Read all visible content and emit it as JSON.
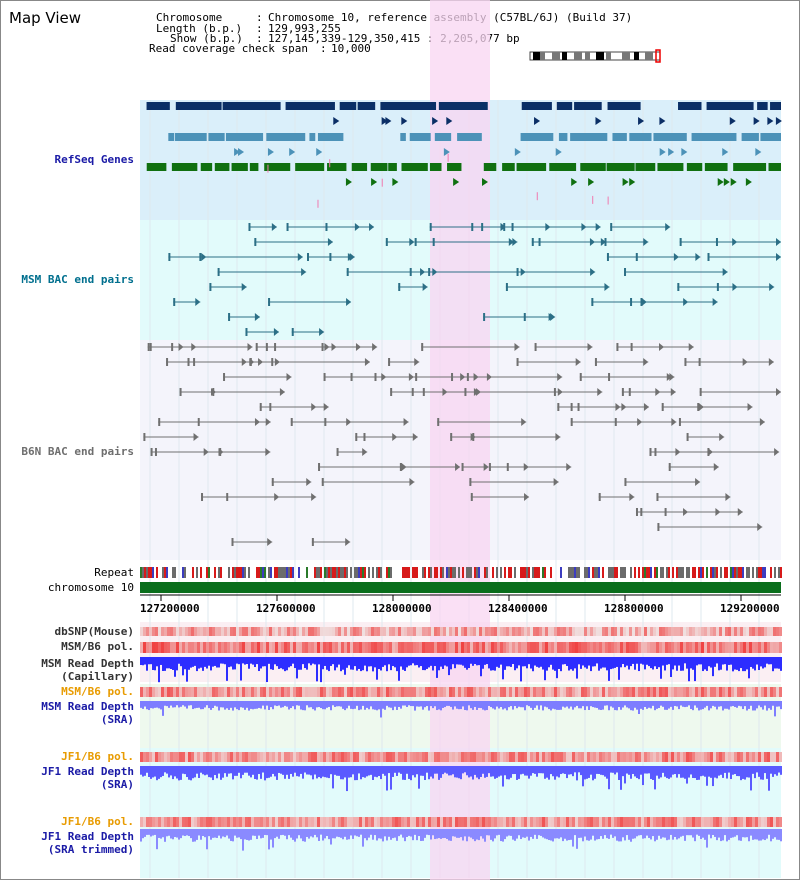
{
  "window": {
    "title": "Map View"
  },
  "info": {
    "chromosome_label": "Chromosome",
    "chromosome_value": "Chromosome 10, reference assembly (C57BL/6J) (Build 37)",
    "length_label": "Length (b.p.)",
    "length_value": "129,993,255",
    "show_label": "Show (b.p.)",
    "show_value": "127,145,339-129,350,415 : 2,205,077 bp",
    "span_label": "Read coverage check span",
    "span_value": "10,000"
  },
  "tracks": {
    "refseq": "RefSeq Genes",
    "msm_bac": "MSM BAC end pairs",
    "b6n_bac": "B6N BAC end pairs",
    "repeat": "Repeat",
    "chromosome": "chromosome 10",
    "dbsnp": "dbSNP(Mouse)",
    "msm_b6_pol_1": "MSM/B6 pol.",
    "msm_read_depth_cap_1": "MSM Read Depth",
    "msm_read_depth_cap_2": "(Capillary)",
    "msm_b6_pol_2": "MSM/B6 pol.",
    "msm_read_depth_sra_1": "MSM Read Depth",
    "msm_read_depth_sra_2": "(SRA)",
    "jf1_b6_pol_1": "JF1/B6 pol.",
    "jf1_read_depth_sra_1": "JF1 Read Depth",
    "jf1_read_depth_sra_2": "(SRA)",
    "jf1_b6_pol_2": "JF1/B6 pol.",
    "jf1_read_depth_trim_1": "JF1 Read Depth",
    "jf1_read_depth_trim_2": "(SRA trimmed)"
  },
  "axis": {
    "ticks": [
      "127200000",
      "127600000",
      "128000000",
      "128400000",
      "128800000",
      "129200000"
    ]
  },
  "colors": {
    "refseq_bg": "#daeffa",
    "bac_bg": "#e2fbfb",
    "highlight": "#f8d6f2",
    "gene_dark": "#0b2f66",
    "gene_mid": "#4c92b8",
    "gene_green": "#107010",
    "bac_teal": "#2c6f86",
    "bac_gray": "#707070",
    "chromosome": "#0a6e1c",
    "depth_blue": "#2f2fff"
  }
}
